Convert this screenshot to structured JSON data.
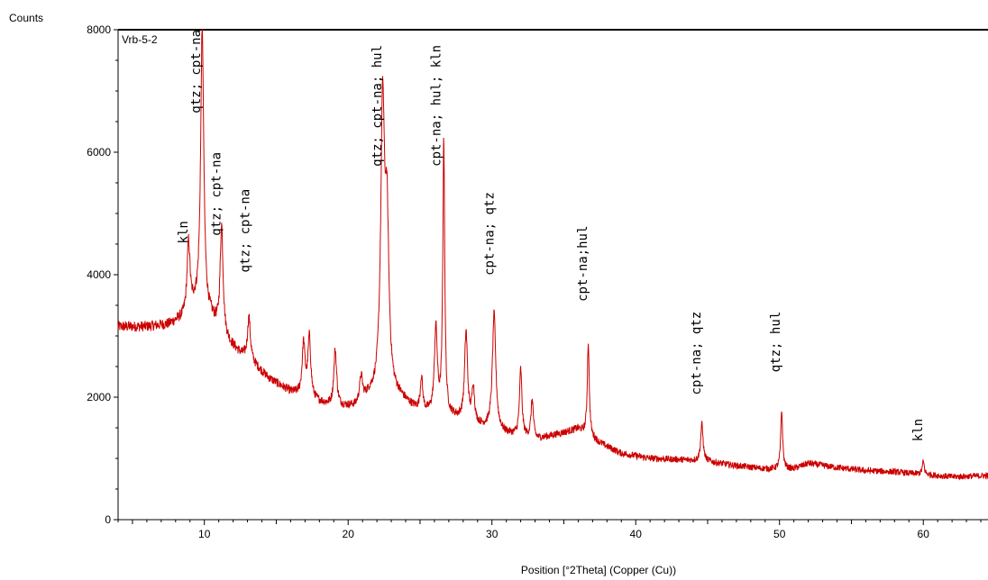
{
  "chart_data": {
    "type": "line",
    "title": "",
    "sample_label": "Vrb-5-2",
    "xlabel": "Position [°2Theta] (Copper (Cu))",
    "ylabel": "Counts",
    "xlim": [
      4.0,
      64.5
    ],
    "ylim": [
      0,
      8000
    ],
    "x_ticks": [
      10,
      20,
      30,
      40,
      50,
      60
    ],
    "y_ticks": [
      0,
      2000,
      4000,
      6000,
      8000
    ],
    "grid": false,
    "line_color": "#cc0000",
    "background_curve": [
      [
        4.0,
        3150
      ],
      [
        6.0,
        3150
      ],
      [
        7.5,
        3180
      ],
      [
        8.5,
        3280
      ],
      [
        9.3,
        3450
      ],
      [
        10.5,
        3250
      ],
      [
        11.6,
        2900
      ],
      [
        12.5,
        2700
      ],
      [
        13.5,
        2520
      ],
      [
        14.5,
        2300
      ],
      [
        16.0,
        2080
      ],
      [
        17.5,
        1950
      ],
      [
        19.0,
        1830
      ],
      [
        20.5,
        1830
      ],
      [
        21.5,
        2000
      ],
      [
        23.5,
        1980
      ],
      [
        25.0,
        1750
      ],
      [
        27.5,
        1650
      ],
      [
        29.5,
        1500
      ],
      [
        31.0,
        1400
      ],
      [
        33.0,
        1300
      ],
      [
        35.0,
        1420
      ],
      [
        36.0,
        1480
      ],
      [
        37.5,
        1250
      ],
      [
        39.0,
        1080
      ],
      [
        41.0,
        1000
      ],
      [
        43.0,
        980
      ],
      [
        45.0,
        950
      ],
      [
        47.0,
        880
      ],
      [
        49.0,
        830
      ],
      [
        51.0,
        830
      ],
      [
        52.0,
        920
      ],
      [
        54.0,
        850
      ],
      [
        56.0,
        800
      ],
      [
        58.0,
        780
      ],
      [
        60.0,
        740
      ],
      [
        62.0,
        700
      ],
      [
        64.5,
        720
      ]
    ],
    "peaks": [
      {
        "x": 8.9,
        "y": 4500,
        "w": 0.12
      },
      {
        "x": 9.85,
        "y": 8000,
        "w": 0.13
      },
      {
        "x": 11.2,
        "y": 4780,
        "w": 0.12
      },
      {
        "x": 13.1,
        "y": 3300,
        "w": 0.12
      },
      {
        "x": 16.9,
        "y": 2850,
        "w": 0.12
      },
      {
        "x": 17.3,
        "y": 2950,
        "w": 0.12
      },
      {
        "x": 19.1,
        "y": 2750,
        "w": 0.12
      },
      {
        "x": 20.9,
        "y": 2300,
        "w": 0.12
      },
      {
        "x": 22.4,
        "y": 6600,
        "w": 0.16
      },
      {
        "x": 22.7,
        "y": 4600,
        "w": 0.16
      },
      {
        "x": 25.1,
        "y": 2300,
        "w": 0.1
      },
      {
        "x": 26.1,
        "y": 3100,
        "w": 0.12
      },
      {
        "x": 26.65,
        "y": 6150,
        "w": 0.08
      },
      {
        "x": 28.2,
        "y": 3050,
        "w": 0.12
      },
      {
        "x": 28.7,
        "y": 2150,
        "w": 0.1
      },
      {
        "x": 30.15,
        "y": 3350,
        "w": 0.14
      },
      {
        "x": 32.0,
        "y": 2450,
        "w": 0.1
      },
      {
        "x": 32.8,
        "y": 1950,
        "w": 0.1
      },
      {
        "x": 36.7,
        "y": 2900,
        "w": 0.08
      },
      {
        "x": 44.6,
        "y": 1560,
        "w": 0.1
      },
      {
        "x": 50.15,
        "y": 1780,
        "w": 0.08
      },
      {
        "x": 60.0,
        "y": 950,
        "w": 0.08
      }
    ],
    "annotations": [
      {
        "x": 9.0,
        "text": "kln",
        "y_top": 4880
      },
      {
        "x": 9.9,
        "text": "qtz; cpt-na",
        "y_top": 8000
      },
      {
        "x": 11.3,
        "text": "qtz; cpt-na",
        "y_top": 6000
      },
      {
        "x": 13.3,
        "text": "qtz; cpt-na",
        "y_top": 5400
      },
      {
        "x": 22.5,
        "text": "qtz; cpt-na; hul",
        "y_top": 7750
      },
      {
        "x": 26.6,
        "text": "cpt-na; hul; kln",
        "y_top": 7750
      },
      {
        "x": 30.3,
        "text": "cpt-na; qtz",
        "y_top": 5350
      },
      {
        "x": 36.8,
        "text": "cpt-na;hul",
        "y_top": 4800
      },
      {
        "x": 44.7,
        "text": "cpt-na; qtz",
        "y_top": 3400
      },
      {
        "x": 50.2,
        "text": "qtz; hul",
        "y_top": 3400
      },
      {
        "x": 60.1,
        "text": "kln",
        "y_top": 1650
      }
    ]
  }
}
